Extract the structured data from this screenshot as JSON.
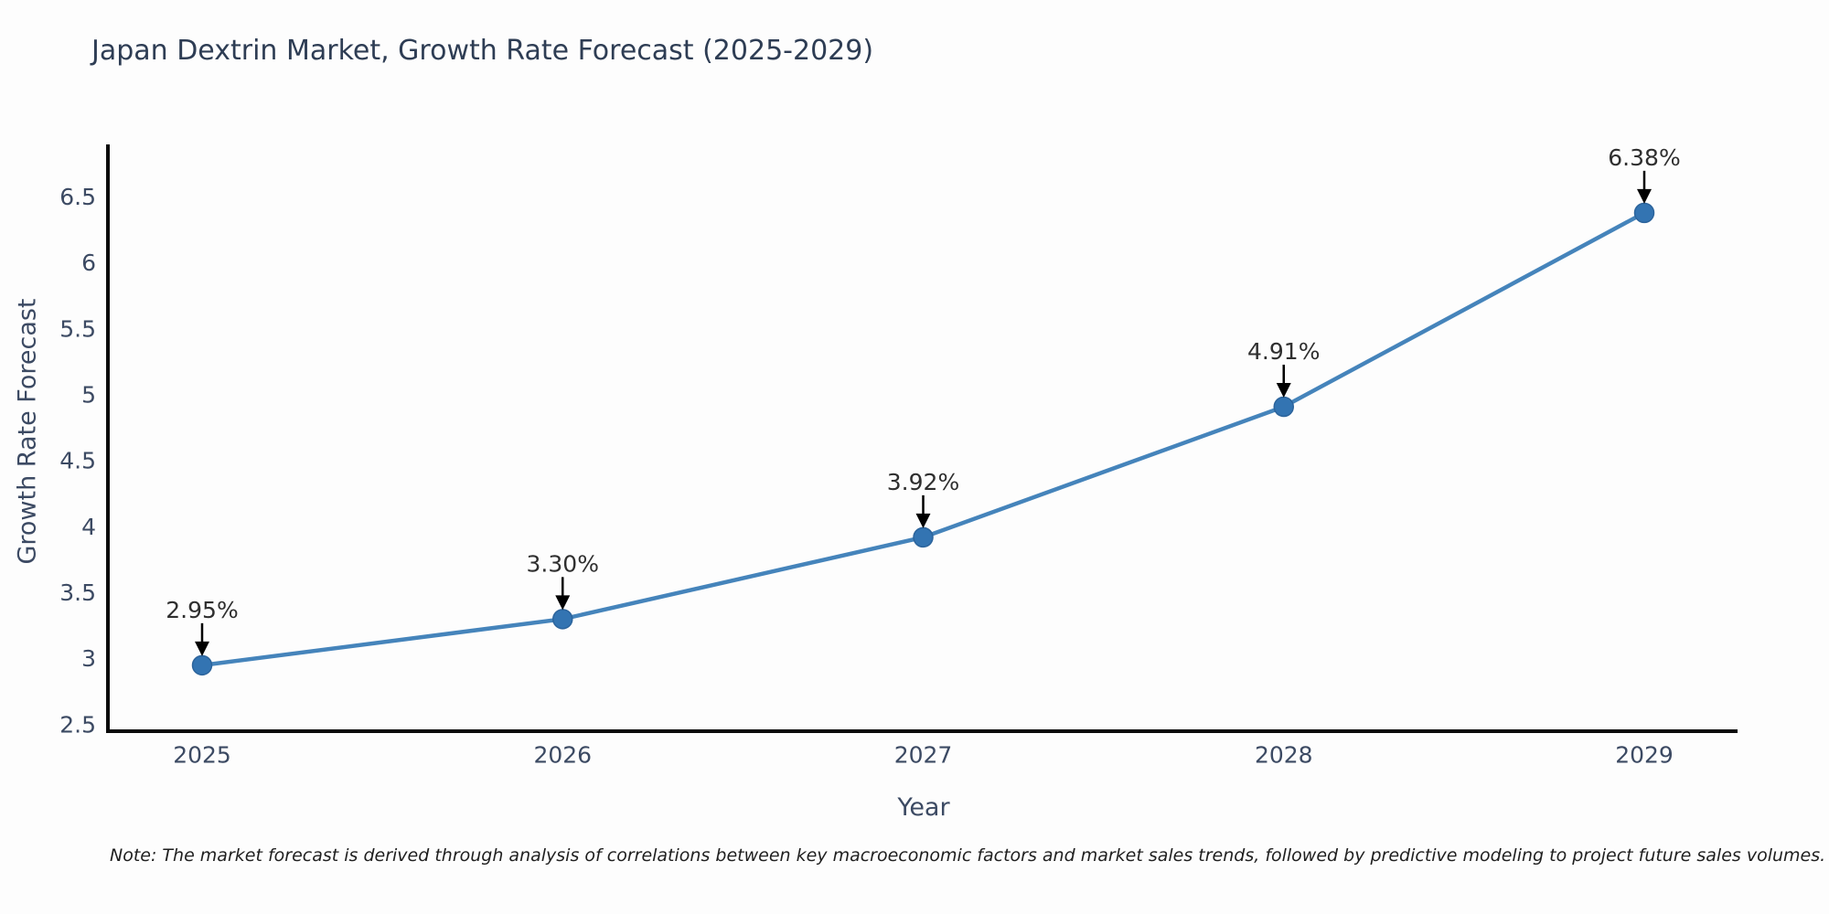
{
  "chart_data": {
    "type": "line",
    "title": "Japan Dextrin Market, Growth Rate Forecast (2025-2029)",
    "xlabel": "Year",
    "ylabel": "Growth Rate Forecast",
    "x": [
      2025,
      2026,
      2027,
      2028,
      2029
    ],
    "values": [
      2.95,
      3.3,
      3.92,
      4.91,
      6.38
    ],
    "point_labels": [
      "2.95%",
      "3.30%",
      "3.92%",
      "4.91%",
      "6.38%"
    ],
    "y_ticks": [
      2.5,
      3,
      3.5,
      4,
      4.5,
      5,
      5.5,
      6,
      6.5
    ],
    "ylim": [
      2.45,
      6.92
    ],
    "grid": false,
    "legend_position": "none",
    "colors": {
      "line": "#4584bb",
      "marker": "#3374b2",
      "marker_edge": "#2c649c",
      "axis": "#0a0a0a",
      "tick_text": "#3c4a63",
      "title_text": "#2e3d54",
      "label_text": "#2f2f2f",
      "annotation_arrow": "#000000"
    }
  },
  "note": "Note: The market forecast is derived through analysis of correlations between key macroeconomic factors and market sales trends, followed by predictive modeling to project future sales volumes."
}
